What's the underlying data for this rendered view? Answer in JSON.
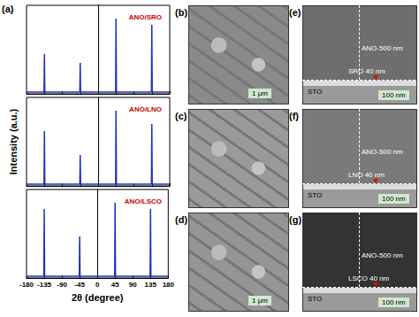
{
  "chart_data": [
    {
      "type": "line",
      "panel": "(a)",
      "title": "ANO/SRO",
      "x": [
        -180,
        -136,
        -135,
        -134,
        -46,
        -45,
        -44,
        44,
        45,
        46,
        134,
        135,
        136,
        180
      ],
      "values": [
        0.02,
        0.02,
        0.45,
        0.02,
        0.02,
        0.35,
        0.02,
        0.02,
        0.85,
        0.02,
        0.02,
        0.78,
        0.02,
        0.02
      ],
      "color": "#1f2fbf",
      "xlim": [
        -180,
        180
      ],
      "xticks": [
        -180,
        -135,
        -90,
        -45,
        0,
        45,
        90,
        135,
        180
      ],
      "ylim": [
        0,
        1
      ],
      "tick_labels": false
    },
    {
      "type": "line",
      "title": "ANO/LNO",
      "ylabel": "Intensity (a.u.)",
      "x": [
        -180,
        -136,
        -135,
        -134,
        -46,
        -45,
        -44,
        44,
        45,
        46,
        134,
        135,
        136,
        180
      ],
      "values": [
        0.02,
        0.02,
        0.62,
        0.02,
        0.02,
        0.35,
        0.02,
        0.02,
        0.85,
        0.02,
        0.02,
        0.7,
        0.02,
        0.02
      ],
      "color": "#1f2fbf",
      "xlim": [
        -180,
        180
      ],
      "xticks": [
        -180,
        -135,
        -90,
        -45,
        0,
        45,
        90,
        135,
        180
      ],
      "ylim": [
        0,
        1
      ],
      "tick_labels": false
    },
    {
      "type": "line",
      "title": "ANO/LSCO",
      "xlabel": "2θ (degree)",
      "x": [
        -180,
        -136,
        -135,
        -134,
        -46,
        -45,
        -44,
        44,
        45,
        46,
        134,
        135,
        136,
        180
      ],
      "values": [
        0.02,
        0.02,
        0.78,
        0.02,
        0.02,
        0.47,
        0.02,
        0.02,
        0.85,
        0.02,
        0.02,
        0.78,
        0.02,
        0.02
      ],
      "color": "#1f2fbf",
      "xlim": [
        -180,
        180
      ],
      "xticks": [
        -180,
        -135,
        -90,
        -45,
        0,
        45,
        90,
        135,
        180
      ],
      "ylim": [
        0,
        1
      ],
      "tick_labels": "x"
    }
  ],
  "images": [
    {
      "label": "(b)",
      "scale_bar": "1 μm"
    },
    {
      "label": "(c)"
    },
    {
      "label": "(d)",
      "scale_bar": "1 μm"
    },
    {
      "label": "(e)",
      "film": "ANO-500 nm",
      "electrode": "SRO 40 nm",
      "substrate": "STO",
      "scale_bar": "100 nm"
    },
    {
      "label": "(f)",
      "film": "ANO-500 nm",
      "electrode": "LNO 40 nm",
      "substrate": "STO",
      "scale_bar": "100 nm"
    },
    {
      "label": "(g)",
      "film": "ANO-500 nm",
      "electrode": "LSCO 40 nm",
      "substrate": "STO",
      "scale_bar": "100 nm"
    }
  ]
}
